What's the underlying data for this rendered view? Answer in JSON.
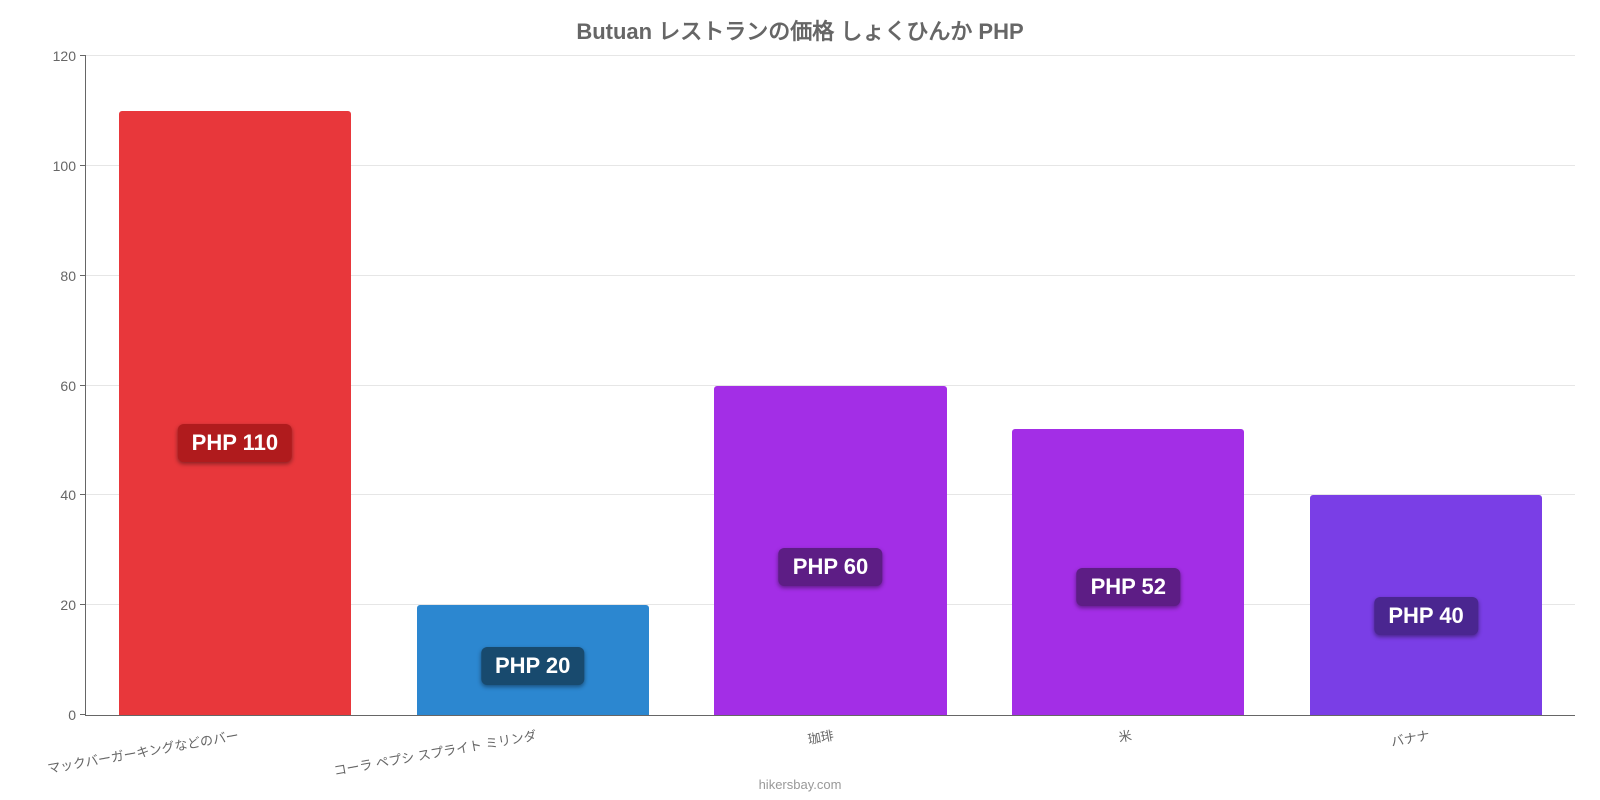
{
  "chart": {
    "type": "bar",
    "title": "Butuan レストランの価格 しょくひんか PHP",
    "title_fontsize": 22,
    "title_color": "#666666",
    "background_color": "#ffffff",
    "grid_color": "#e6e6e6",
    "axis_color": "#666666",
    "ylim": [
      0,
      120
    ],
    "ytick_step": 20,
    "yticks": [
      0,
      20,
      40,
      60,
      80,
      100,
      120
    ],
    "ytick_fontsize": 14,
    "xtick_fontsize": 13,
    "xtick_rotation_deg": -10,
    "bar_width_ratio": 0.78,
    "value_label_prefix": "PHP ",
    "value_label_fontsize": 22,
    "categories": [
      "マックバーガーキングなどのバー",
      "コーラ ペプシ スプライト ミリンダ",
      "珈琲",
      "米",
      "バナナ"
    ],
    "values": [
      110,
      20,
      60,
      52,
      40
    ],
    "bar_colors": [
      "#e8373b",
      "#2c87d0",
      "#a32ee6",
      "#a32ee6",
      "#7a3ee6"
    ],
    "badge_colors": [
      "#b01b1d",
      "#184a6e",
      "#5d1d85",
      "#5d1d85",
      "#4a2690"
    ]
  },
  "attribution": "hikersbay.com"
}
